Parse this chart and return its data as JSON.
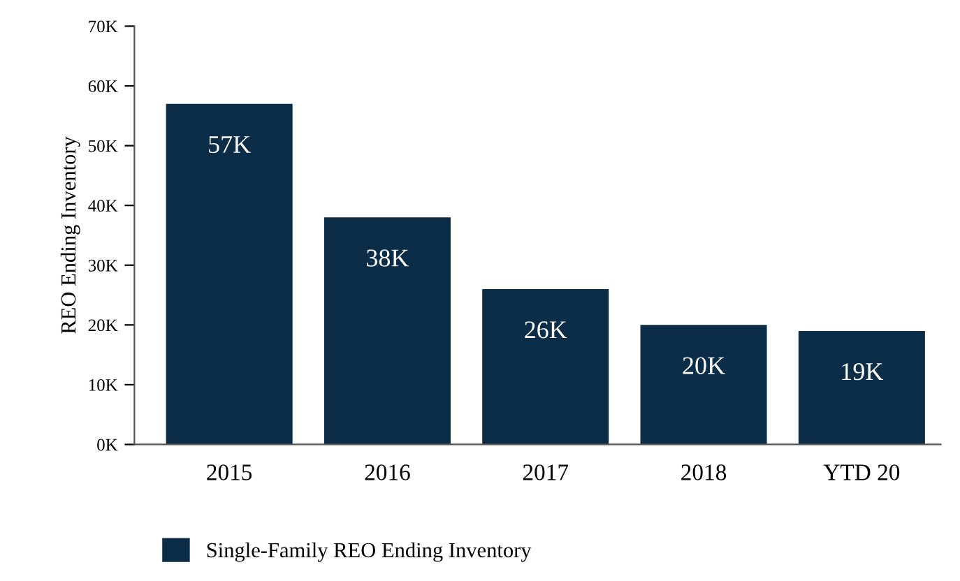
{
  "chart_data": {
    "type": "bar",
    "ylabel": "REO Ending Inventory",
    "categories": [
      "2015",
      "2016",
      "2017",
      "2018",
      "YTD 20"
    ],
    "series": [
      {
        "name": "Single-Family REO Ending Inventory",
        "color": "#0c2d48",
        "values": [
          57000,
          38000,
          26000,
          20000,
          19000
        ],
        "value_labels": [
          "57K",
          "38K",
          "26K",
          "20K",
          "19K"
        ]
      }
    ],
    "ylim": [
      0,
      70000
    ],
    "yticks": [
      {
        "value": 0,
        "label": "0K"
      },
      {
        "value": 10000,
        "label": "10K"
      },
      {
        "value": 20000,
        "label": "20K"
      },
      {
        "value": 30000,
        "label": "30K"
      },
      {
        "value": 40000,
        "label": "40K"
      },
      {
        "value": 50000,
        "label": "50K"
      },
      {
        "value": 60000,
        "label": "60K"
      },
      {
        "value": 70000,
        "label": "70K"
      }
    ],
    "legend": "bottom left",
    "grid": false
  }
}
